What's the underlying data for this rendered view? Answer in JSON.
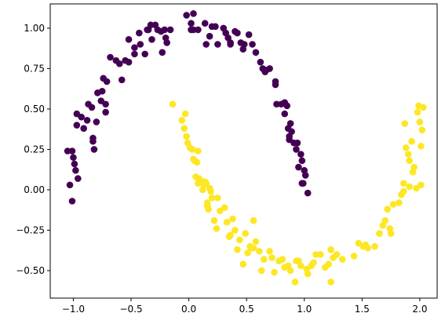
{
  "chart_data": {
    "type": "scatter",
    "title": "",
    "xlabel": "",
    "ylabel": "",
    "xlim": [
      -1.2,
      2.15
    ],
    "ylim": [
      -0.67,
      1.15
    ],
    "xticks": [
      -1.0,
      -0.5,
      0.0,
      0.5,
      1.0,
      1.5,
      2.0
    ],
    "xtick_labels": [
      "−1.0",
      "−0.5",
      "0.0",
      "0.5",
      "1.0",
      "1.5",
      "2.0"
    ],
    "yticks": [
      -0.5,
      -0.25,
      0.0,
      0.25,
      0.5,
      0.75,
      1.0
    ],
    "ytick_labels": [
      "−0.50",
      "−0.25",
      "0.00",
      "0.25",
      "0.50",
      "0.75",
      "1.00"
    ],
    "grid": false,
    "legend": "none",
    "series": [
      {
        "color": "#440154",
        "points": [
          [
            -1.05,
            0.24
          ],
          [
            -1.03,
            0.03
          ],
          [
            -1.01,
            -0.07
          ],
          [
            -1.01,
            0.24
          ],
          [
            -1.0,
            0.2
          ],
          [
            -0.99,
            0.16
          ],
          [
            -0.98,
            0.12
          ],
          [
            -0.96,
            0.07
          ],
          [
            -0.97,
            0.47
          ],
          [
            -0.97,
            0.4
          ],
          [
            -0.93,
            0.45
          ],
          [
            -0.91,
            0.38
          ],
          [
            -0.88,
            0.43
          ],
          [
            -0.87,
            0.53
          ],
          [
            -0.84,
            0.51
          ],
          [
            -0.83,
            0.32
          ],
          [
            -0.83,
            0.3
          ],
          [
            -0.82,
            0.25
          ],
          [
            -0.8,
            0.42
          ],
          [
            -0.79,
            0.6
          ],
          [
            -0.76,
            0.55
          ],
          [
            -0.75,
            0.61
          ],
          [
            -0.74,
            0.69
          ],
          [
            -0.71,
            0.67
          ],
          [
            -0.72,
            0.53
          ],
          [
            -0.72,
            0.48
          ],
          [
            -0.68,
            0.82
          ],
          [
            -0.63,
            0.8
          ],
          [
            -0.6,
            0.78
          ],
          [
            -0.58,
            0.68
          ],
          [
            -0.55,
            0.8
          ],
          [
            -0.52,
            0.79
          ],
          [
            -0.52,
            0.93
          ],
          [
            -0.47,
            0.88
          ],
          [
            -0.47,
            0.84
          ],
          [
            -0.43,
            0.97
          ],
          [
            -0.42,
            0.9
          ],
          [
            -0.38,
            0.84
          ],
          [
            -0.36,
            0.99
          ],
          [
            -0.35,
            0.99
          ],
          [
            -0.33,
            1.02
          ],
          [
            -0.32,
            0.93
          ],
          [
            -0.29,
            1.02
          ],
          [
            -0.27,
            0.99
          ],
          [
            -0.24,
            0.98
          ],
          [
            -0.23,
            0.85
          ],
          [
            -0.21,
            0.99
          ],
          [
            -0.2,
            0.94
          ],
          [
            -0.19,
            0.91
          ],
          [
            -0.16,
            0.99
          ],
          [
            -0.02,
            1.08
          ],
          [
            0.02,
            1.03
          ],
          [
            0.02,
            0.99
          ],
          [
            0.04,
            1.09
          ],
          [
            0.04,
            0.99
          ],
          [
            0.08,
            0.99
          ],
          [
            0.14,
            1.03
          ],
          [
            0.15,
            0.9
          ],
          [
            0.18,
            0.95
          ],
          [
            0.2,
            1.01
          ],
          [
            0.23,
            1.01
          ],
          [
            0.25,
            0.9
          ],
          [
            0.3,
            1.0
          ],
          [
            0.32,
            0.97
          ],
          [
            0.34,
            0.94
          ],
          [
            0.36,
            0.91
          ],
          [
            0.36,
            0.9
          ],
          [
            0.4,
            0.98
          ],
          [
            0.42,
            0.97
          ],
          [
            0.45,
            0.91
          ],
          [
            0.47,
            0.87
          ],
          [
            0.48,
            0.9
          ],
          [
            0.52,
            0.96
          ],
          [
            0.55,
            0.9
          ],
          [
            0.58,
            0.85
          ],
          [
            0.62,
            0.79
          ],
          [
            0.64,
            0.75
          ],
          [
            0.66,
            0.73
          ],
          [
            0.67,
            0.74
          ],
          [
            0.7,
            0.75
          ],
          [
            0.75,
            0.67
          ],
          [
            0.75,
            0.65
          ],
          [
            0.76,
            0.53
          ],
          [
            0.8,
            0.53
          ],
          [
            0.83,
            0.54
          ],
          [
            0.83,
            0.47
          ],
          [
            0.85,
            0.52
          ],
          [
            0.86,
            0.38
          ],
          [
            0.87,
            0.33
          ],
          [
            0.87,
            0.31
          ],
          [
            0.88,
            0.41
          ],
          [
            0.89,
            0.36
          ],
          [
            0.91,
            0.29
          ],
          [
            0.93,
            0.25
          ],
          [
            0.94,
            0.29
          ],
          [
            0.95,
            0.14
          ],
          [
            0.97,
            0.22
          ],
          [
            0.98,
            0.18
          ],
          [
            1.0,
            0.12
          ],
          [
            1.01,
            0.09
          ],
          [
            0.98,
            0.04
          ],
          [
            0.99,
            0.04
          ],
          [
            1.03,
            -0.02
          ]
        ]
      },
      {
        "color": "#fde725",
        "points": [
          [
            -0.14,
            0.53
          ],
          [
            -0.06,
            0.43
          ],
          [
            -0.04,
            0.38
          ],
          [
            -0.03,
            0.47
          ],
          [
            -0.02,
            0.33
          ],
          [
            -0.01,
            0.29
          ],
          [
            0.01,
            0.26
          ],
          [
            0.03,
            0.25
          ],
          [
            0.04,
            0.19
          ],
          [
            0.05,
            0.18
          ],
          [
            0.06,
            0.08
          ],
          [
            0.07,
            0.17
          ],
          [
            0.08,
            0.24
          ],
          [
            0.08,
            0.04
          ],
          [
            0.09,
            0.07
          ],
          [
            0.11,
            0.05
          ],
          [
            0.12,
            0.0
          ],
          [
            0.13,
            0.03
          ],
          [
            0.14,
            0.05
          ],
          [
            0.15,
            0.04
          ],
          [
            0.16,
            -0.1
          ],
          [
            0.16,
            -0.08
          ],
          [
            0.17,
            -0.12
          ],
          [
            0.18,
            0.01
          ],
          [
            0.19,
            -0.01
          ],
          [
            0.2,
            -0.05
          ],
          [
            0.22,
            -0.19
          ],
          [
            0.24,
            -0.24
          ],
          [
            0.25,
            -0.05
          ],
          [
            0.27,
            -0.13
          ],
          [
            0.31,
            -0.11
          ],
          [
            0.33,
            -0.2
          ],
          [
            0.35,
            -0.29
          ],
          [
            0.36,
            -0.28
          ],
          [
            0.38,
            -0.18
          ],
          [
            0.4,
            -0.25
          ],
          [
            0.42,
            -0.37
          ],
          [
            0.44,
            -0.31
          ],
          [
            0.47,
            -0.46
          ],
          [
            0.49,
            -0.27
          ],
          [
            0.51,
            -0.39
          ],
          [
            0.53,
            -0.35
          ],
          [
            0.54,
            -0.36
          ],
          [
            0.56,
            -0.19
          ],
          [
            0.56,
            -0.36
          ],
          [
            0.58,
            -0.32
          ],
          [
            0.61,
            -0.38
          ],
          [
            0.63,
            -0.5
          ],
          [
            0.65,
            -0.43
          ],
          [
            0.7,
            -0.38
          ],
          [
            0.72,
            -0.42
          ],
          [
            0.74,
            -0.51
          ],
          [
            0.78,
            -0.44
          ],
          [
            0.81,
            -0.43
          ],
          [
            0.83,
            -0.48
          ],
          [
            0.86,
            -0.47
          ],
          [
            0.88,
            -0.5
          ],
          [
            0.92,
            -0.57
          ],
          [
            0.93,
            -0.44
          ],
          [
            0.95,
            -0.44
          ],
          [
            0.97,
            -0.47
          ],
          [
            1.02,
            -0.49
          ],
          [
            1.03,
            -0.52
          ],
          [
            1.06,
            -0.47
          ],
          [
            1.08,
            -0.45
          ],
          [
            1.1,
            -0.4
          ],
          [
            1.14,
            -0.4
          ],
          [
            1.18,
            -0.48
          ],
          [
            1.21,
            -0.46
          ],
          [
            1.23,
            -0.37
          ],
          [
            1.23,
            -0.57
          ],
          [
            1.25,
            -0.42
          ],
          [
            1.28,
            -0.4
          ],
          [
            1.33,
            -0.43
          ],
          [
            1.43,
            -0.41
          ],
          [
            1.47,
            -0.33
          ],
          [
            1.51,
            -0.35
          ],
          [
            1.53,
            -0.34
          ],
          [
            1.55,
            -0.36
          ],
          [
            1.61,
            -0.35
          ],
          [
            1.65,
            -0.27
          ],
          [
            1.68,
            -0.22
          ],
          [
            1.7,
            -0.19
          ],
          [
            1.72,
            -0.12
          ],
          [
            1.74,
            -0.24
          ],
          [
            1.75,
            -0.27
          ],
          [
            1.77,
            -0.09
          ],
          [
            1.82,
            -0.08
          ],
          [
            1.84,
            -0.03
          ],
          [
            1.86,
            -0.01
          ],
          [
            1.86,
            0.04
          ],
          [
            1.87,
            0.41
          ],
          [
            1.88,
            0.26
          ],
          [
            1.9,
            0.22
          ],
          [
            1.91,
            0.02
          ],
          [
            1.91,
            0.18
          ],
          [
            1.93,
            0.3
          ],
          [
            1.94,
            0.11
          ],
          [
            1.95,
            0.14
          ],
          [
            1.97,
            0.01
          ],
          [
            1.98,
            0.48
          ],
          [
            1.99,
            0.52
          ],
          [
            2.0,
            0.42
          ],
          [
            2.01,
            0.03
          ],
          [
            2.01,
            0.27
          ],
          [
            2.02,
            0.37
          ],
          [
            2.03,
            0.51
          ]
        ]
      }
    ]
  }
}
